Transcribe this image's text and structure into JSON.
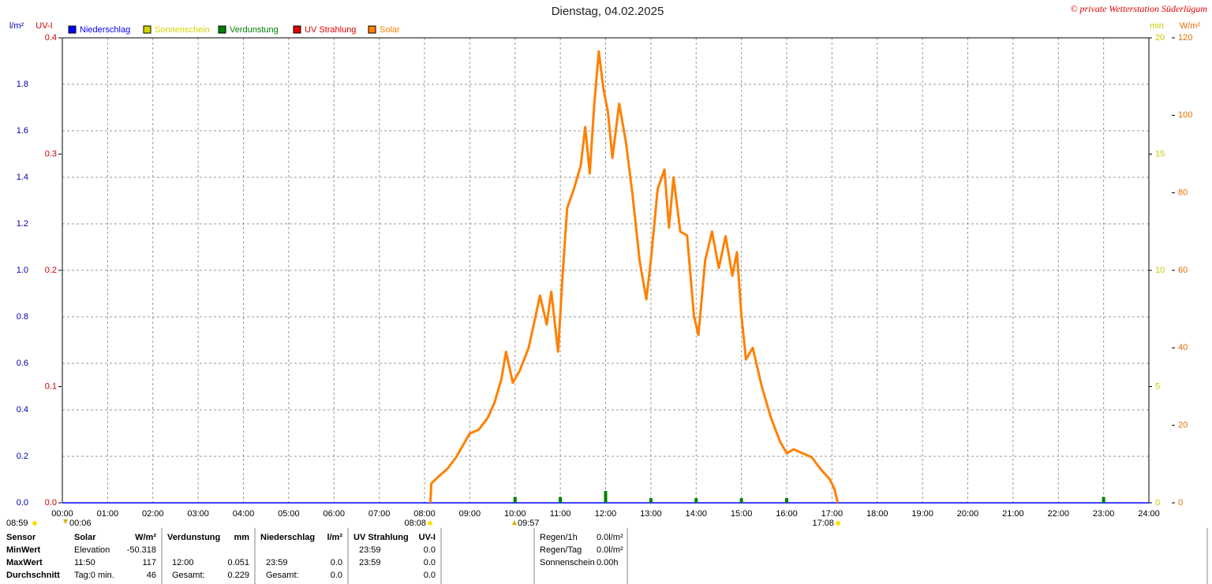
{
  "chart_data": {
    "type": "line",
    "title": "Dienstag, 04.02.2025",
    "copyright": "© private Wetterstation Süderlügum",
    "y_unit": "l/m²",
    "uv_unit": "UV-I",
    "min_unit": "min",
    "y2_unit": "W/m²",
    "xlim": [
      0,
      24
    ],
    "xticks": [
      {
        "value": 0,
        "label": "00:00"
      },
      {
        "value": 1,
        "label": "01:00"
      },
      {
        "value": 2,
        "label": "02:00"
      },
      {
        "value": 3,
        "label": "03:00"
      },
      {
        "value": 4,
        "label": "04:00"
      },
      {
        "value": 5,
        "label": "05:00"
      },
      {
        "value": 6,
        "label": "06:00"
      },
      {
        "value": 7,
        "label": "07:00"
      },
      {
        "value": 8,
        "label": "08:00"
      },
      {
        "value": 9,
        "label": "09:00"
      },
      {
        "value": 10,
        "label": "10:00"
      },
      {
        "value": 11,
        "label": "11:00"
      },
      {
        "value": 12,
        "label": "12:00"
      },
      {
        "value": 13,
        "label": "13:00"
      },
      {
        "value": 14,
        "label": "14:00"
      },
      {
        "value": 15,
        "label": "15:00"
      },
      {
        "value": 16,
        "label": "16:00"
      },
      {
        "value": 17,
        "label": "17:00"
      },
      {
        "value": 18,
        "label": "18:00"
      },
      {
        "value": 19,
        "label": "19:00"
      },
      {
        "value": 20,
        "label": "20:00"
      },
      {
        "value": 21,
        "label": "21:00"
      },
      {
        "value": 22,
        "label": "22:00"
      },
      {
        "value": 23,
        "label": "23:00"
      },
      {
        "value": 24,
        "label": "24:00"
      }
    ],
    "ylim": [
      0,
      2
    ],
    "yticks": [
      {
        "value": 0,
        "label": "0.0"
      },
      0.2,
      0.4,
      0.6,
      0.8,
      {
        "value": 1,
        "label": "1.0"
      },
      1.2,
      1.4,
      1.6,
      1.8
    ],
    "uv_lim": [
      0,
      0.4
    ],
    "uv_ticks": [
      {
        "value": 0,
        "label": "0.0"
      },
      0.1,
      0.2,
      0.3,
      0.4
    ],
    "min_lim": [
      0,
      20
    ],
    "min_ticks": [
      0,
      5,
      10,
      15,
      20
    ],
    "y2lim": [
      0,
      120
    ],
    "y2ticks": [
      0,
      20,
      40,
      60,
      80,
      100,
      120
    ],
    "grid": true,
    "series": [
      {
        "name": "Niederschlag",
        "color": "#0000ff",
        "axis": "y",
        "x": [
          0,
          24
        ],
        "values": [
          0,
          0
        ]
      },
      {
        "name": "Sonnenschein",
        "color": "#d4d400",
        "axis": "min",
        "x": [],
        "values": []
      },
      {
        "name": "Verdunstung",
        "color": "#008000",
        "axis": "y",
        "kind": "bar",
        "x": [
          10,
          11,
          12,
          13,
          14,
          15,
          16,
          23
        ],
        "values": [
          0.025,
          0.025,
          0.051,
          0.02,
          0.02,
          0.02,
          0.02,
          0.025
        ]
      },
      {
        "name": "UV Strahlung",
        "color": "#e00000",
        "axis": "uv",
        "x": [],
        "values": []
      },
      {
        "name": "Solar",
        "color": "#ff8000",
        "axis": "y2",
        "x": [
          8.13,
          8.15,
          8.3,
          8.5,
          8.7,
          8.9,
          9.0,
          9.2,
          9.4,
          9.55,
          9.7,
          9.8,
          9.95,
          10.1,
          10.3,
          10.45,
          10.55,
          10.7,
          10.8,
          10.95,
          11.05,
          11.15,
          11.3,
          11.45,
          11.55,
          11.65,
          11.75,
          11.85,
          11.95,
          12.05,
          12.15,
          12.3,
          12.45,
          12.6,
          12.75,
          12.9,
          13.0,
          13.15,
          13.3,
          13.4,
          13.5,
          13.65,
          13.8,
          13.95,
          14.05,
          14.2,
          14.35,
          14.5,
          14.65,
          14.8,
          14.9,
          15.0,
          15.1,
          15.25,
          15.45,
          15.65,
          15.85,
          16.0,
          16.15,
          16.35,
          16.55,
          16.75,
          16.95,
          17.05,
          17.13
        ],
        "values": [
          0,
          5,
          6.7,
          8.7,
          11.8,
          15.9,
          17.9,
          18.9,
          22,
          26,
          32,
          39,
          31,
          34,
          40,
          48,
          53.5,
          46,
          54.5,
          39,
          58.6,
          76,
          81,
          87,
          97,
          85,
          103,
          116.5,
          107,
          101,
          89,
          103,
          93,
          79,
          62.6,
          52.5,
          62.6,
          81,
          86,
          71,
          84,
          70,
          69,
          48.4,
          43.3,
          62.6,
          70,
          60.6,
          68.8,
          58.6,
          64.7,
          48.4,
          37,
          40,
          30,
          22,
          15.9,
          12.8,
          13.8,
          12.8,
          11.8,
          8.7,
          6.1,
          3.7,
          0
        ]
      }
    ],
    "annotations": [
      "08:59",
      "00:06",
      "08:08",
      "09:57",
      "17:08"
    ]
  },
  "table": {
    "rows": [
      [
        "Sensor",
        "Solar",
        "W/m²",
        "Verdunstung",
        "mm",
        "Niederschlag",
        "l/m²",
        "UV Strahlung",
        "UV-I"
      ],
      [
        "MinWert",
        "Elevation",
        "-50.318",
        null,
        null,
        null,
        null,
        "23:59",
        "0.0"
      ],
      [
        "MaxWert",
        "11:50",
        "117",
        "12:00",
        "0.051",
        "23:59",
        "0.0",
        "23:59",
        "0.0"
      ],
      [
        "Durchschnitt",
        "Tag:0 min.",
        "46",
        "Gesamt:",
        "0.229",
        "Gesamt:",
        "0.0",
        null,
        "0.0"
      ]
    ],
    "summary": [
      [
        "Regen/1h",
        "0.0l/m²"
      ],
      [
        "Regen/Tag",
        "0.0l/m²"
      ],
      [
        "Sonnenschein",
        "0.00h"
      ]
    ]
  }
}
